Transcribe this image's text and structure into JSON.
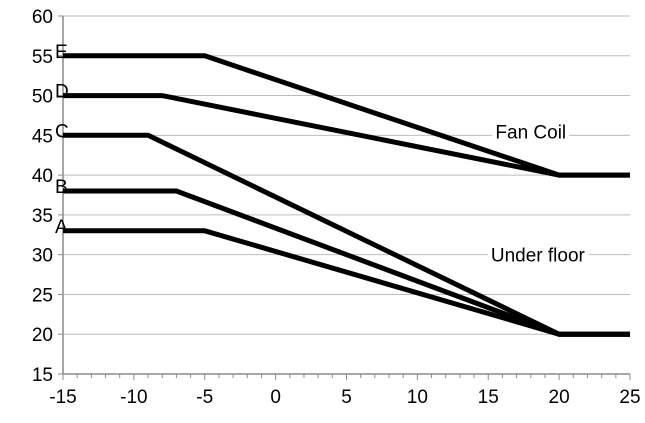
{
  "chart_data": {
    "type": "line",
    "title": "",
    "xlabel": "",
    "ylabel": "",
    "xlim": [
      -15,
      25
    ],
    "ylim": [
      15,
      60
    ],
    "x_ticks": [
      -15,
      -10,
      -5,
      0,
      5,
      10,
      15,
      20,
      25
    ],
    "y_ticks": [
      15,
      20,
      25,
      30,
      35,
      40,
      45,
      50,
      55,
      60
    ],
    "minor_x_step": 1,
    "grid": "horizontal",
    "series": [
      {
        "name": "A",
        "color": "#000000",
        "points": [
          [
            -15,
            33
          ],
          [
            -5,
            33
          ],
          [
            20,
            20
          ],
          [
            25,
            20
          ]
        ]
      },
      {
        "name": "B",
        "color": "#000000",
        "points": [
          [
            -15,
            38
          ],
          [
            -7,
            38
          ],
          [
            20,
            20
          ],
          [
            25,
            20
          ]
        ]
      },
      {
        "name": "C",
        "color": "#000000",
        "points": [
          [
            -15,
            45
          ],
          [
            -9,
            45
          ],
          [
            20,
            20
          ],
          [
            25,
            20
          ]
        ]
      },
      {
        "name": "D",
        "color": "#000000",
        "points": [
          [
            -15,
            50
          ],
          [
            -8,
            50
          ],
          [
            20,
            40
          ],
          [
            25,
            40
          ]
        ]
      },
      {
        "name": "E",
        "color": "#000000",
        "points": [
          [
            -15,
            55
          ],
          [
            -5,
            55
          ],
          [
            20,
            40
          ],
          [
            25,
            40
          ]
        ]
      }
    ],
    "annotations": [
      {
        "text": "Fan Coil",
        "x": 18,
        "y": 45.5
      },
      {
        "text": "Under floor",
        "x": 18.5,
        "y": 30
      }
    ]
  }
}
